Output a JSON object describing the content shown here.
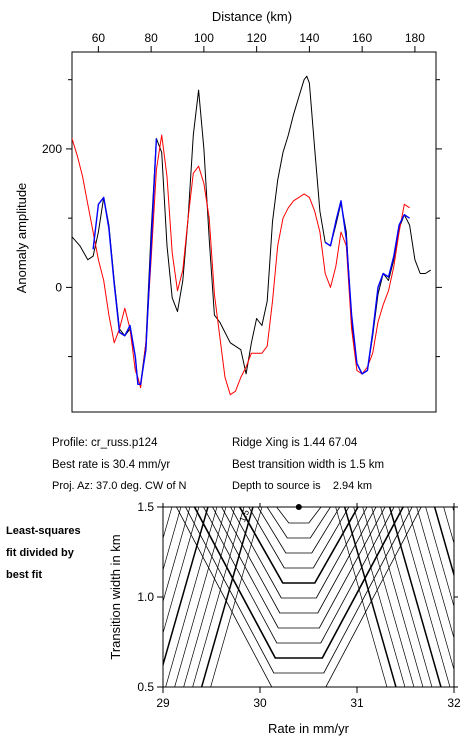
{
  "chart_data": [
    {
      "type": "line",
      "xlabel": "Distance (km)",
      "ylabel": "Anomaly amplitude",
      "xlim": [
        50,
        188
      ],
      "ylim": [
        -180,
        340
      ],
      "xticks": [
        60,
        80,
        100,
        120,
        140,
        160,
        180
      ],
      "yticks": [
        0,
        200
      ],
      "minor_yticks": [
        -100,
        100,
        300
      ],
      "tick_positions": "x-ticks on top axis, y-ticks on left",
      "grid": false,
      "series": [
        {
          "color": "#000000",
          "x": [
            50,
            53,
            56,
            58,
            60,
            62,
            64,
            66,
            68,
            70,
            72,
            74,
            75,
            76,
            78,
            80,
            82,
            84,
            86,
            88,
            90,
            92,
            94,
            96,
            98,
            100,
            102,
            104,
            106,
            108,
            110,
            112,
            114,
            116,
            118,
            120,
            122,
            124,
            126,
            128,
            130,
            132,
            134,
            136,
            138,
            139,
            140,
            142,
            144,
            146,
            148,
            150,
            152,
            154,
            156,
            158,
            160,
            162,
            164,
            166,
            168,
            170,
            172,
            174,
            176,
            178,
            180,
            182,
            184,
            186
          ],
          "y": [
            73,
            60,
            40,
            45,
            80,
            130,
            90,
            10,
            -60,
            -70,
            -60,
            -100,
            -140,
            -140,
            -80,
            80,
            215,
            195,
            60,
            -15,
            -35,
            10,
            100,
            220,
            285,
            200,
            70,
            -40,
            -50,
            -65,
            -80,
            -85,
            -90,
            -125,
            -80,
            -45,
            -55,
            -20,
            95,
            155,
            195,
            220,
            250,
            275,
            300,
            305,
            295,
            200,
            110,
            65,
            60,
            90,
            122,
            80,
            -50,
            -110,
            -125,
            -120,
            -70,
            -10,
            20,
            10,
            40,
            85,
            105,
            90,
            40,
            20,
            20,
            25
          ]
        },
        {
          "color": "#ff0000",
          "x": [
            48,
            50,
            52,
            54,
            56,
            58,
            60,
            62,
            64,
            66,
            68,
            70,
            72,
            74,
            75,
            76,
            78,
            80,
            82,
            84,
            86,
            88,
            90,
            92,
            94,
            96,
            98,
            100,
            102,
            104,
            106,
            108,
            110,
            112,
            114,
            116,
            118,
            120,
            122,
            124,
            126,
            128,
            130,
            132,
            134,
            136,
            138,
            140,
            142,
            144,
            146,
            148,
            150,
            152,
            154,
            156,
            158,
            160,
            162,
            164,
            166,
            168,
            170,
            172,
            174,
            176,
            178
          ],
          "y": [
            220,
            215,
            190,
            160,
            120,
            80,
            40,
            10,
            -40,
            -80,
            -60,
            -30,
            -60,
            -120,
            -130,
            -145,
            -80,
            40,
            170,
            220,
            160,
            50,
            -5,
            25,
            100,
            165,
            175,
            150,
            100,
            -10,
            -70,
            -130,
            -155,
            -150,
            -130,
            -115,
            -95,
            -95,
            -95,
            -85,
            -20,
            60,
            100,
            115,
            125,
            130,
            135,
            130,
            110,
            80,
            20,
            0,
            30,
            80,
            60,
            -60,
            -120,
            -125,
            -115,
            -95,
            -50,
            -25,
            -5,
            30,
            80,
            120,
            115
          ]
        },
        {
          "color": "#0000ff",
          "x": [
            58,
            60,
            62,
            64,
            66,
            68,
            70,
            72,
            74,
            75,
            76,
            78,
            80,
            82
          ],
          "y": [
            55,
            120,
            130,
            85,
            5,
            -65,
            -70,
            -55,
            -100,
            -140,
            -140,
            -90,
            60,
            215
          ]
        },
        {
          "color": "#0000ff",
          "x": [
            146,
            148,
            150,
            152,
            154,
            156,
            158,
            160,
            162,
            164,
            166,
            168,
            170,
            172,
            174,
            176,
            178
          ],
          "y": [
            65,
            60,
            95,
            125,
            70,
            -40,
            -110,
            -125,
            -120,
            -65,
            0,
            20,
            15,
            45,
            90,
            105,
            100
          ]
        }
      ]
    },
    {
      "type": "contour",
      "xlabel": "Rate in mm/yr",
      "ylabel": "Transition width in km",
      "xlim": [
        29,
        32
      ],
      "ylim": [
        0.5,
        1.5
      ],
      "xticks": [
        29,
        30,
        31,
        32
      ],
      "yticks": [
        0.5,
        1.0,
        1.5
      ],
      "minimum": {
        "x": 30.4,
        "y": 1.5
      },
      "contour_labels": [
        "1.5"
      ]
    }
  ],
  "info": {
    "profile": "Profile: cr_russ.p124",
    "best_rate": "Best rate is 30.4 mm/yr",
    "proj_az": "Proj. Az: 37.0 deg. CW of N",
    "ridge_xing": "Ridge Xing is 1.44 67.04",
    "best_width": "Best transition width is 1.5 km",
    "depth": "Depth to source is    2.94 km"
  },
  "side_label": [
    "Least-squares",
    "fit divided by",
    "best fit"
  ]
}
